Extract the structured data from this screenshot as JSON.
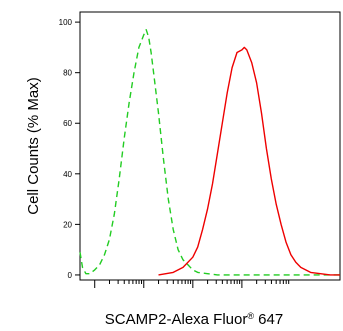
{
  "chart_data": {
    "type": "line",
    "title": "",
    "xlabel": "SCAMP2-Alexa Fluor",
    "xlabel_mark": "®",
    "xlabel_suffix": " 647",
    "ylabel": "Cell Counts (% Max)",
    "x_scale": "log",
    "xlim": [
      -0.3,
      5
    ],
    "ylim": [
      -2,
      104
    ],
    "y_ticks": [
      0,
      20,
      40,
      60,
      80,
      100
    ],
    "x_major_ticks": [
      0,
      1,
      2,
      3
    ],
    "x_tick_labels_shown": false,
    "grid": false,
    "legend": "none",
    "series": [
      {
        "color": "#22cc22",
        "dash": true,
        "x": [
          -0.3,
          -0.25,
          -0.18,
          -0.1,
          0.0,
          0.1,
          0.2,
          0.3,
          0.4,
          0.5,
          0.6,
          0.7,
          0.8,
          0.9,
          1.0,
          1.05,
          1.1,
          1.15,
          1.2,
          1.3,
          1.4,
          1.5,
          1.6,
          1.7,
          1.8,
          1.9,
          2.0,
          2.1,
          2.3,
          2.5,
          3.0,
          4.0,
          5.0
        ],
        "y": [
          9,
          3,
          0.5,
          0.5,
          2,
          4,
          8,
          14,
          24,
          38,
          54,
          68,
          80,
          90,
          95,
          97,
          94,
          88,
          80,
          64,
          46,
          30,
          18,
          10,
          6,
          4,
          2,
          1,
          0.5,
          0,
          0,
          0,
          0
        ]
      },
      {
        "color": "#ee0000",
        "dash": false,
        "x": [
          1.3,
          1.6,
          1.8,
          2.0,
          2.1,
          2.2,
          2.3,
          2.4,
          2.5,
          2.6,
          2.7,
          2.8,
          2.9,
          3.0,
          3.05,
          3.1,
          3.2,
          3.3,
          3.4,
          3.5,
          3.6,
          3.7,
          3.8,
          3.9,
          4.0,
          4.1,
          4.2,
          4.4,
          4.6,
          4.8,
          5.0
        ],
        "y": [
          0,
          1,
          3,
          7,
          11,
          18,
          26,
          36,
          48,
          60,
          72,
          82,
          88,
          89,
          90,
          89,
          84,
          76,
          64,
          50,
          38,
          28,
          20,
          13,
          8,
          5,
          3,
          1,
          0.5,
          0,
          0
        ]
      }
    ]
  }
}
